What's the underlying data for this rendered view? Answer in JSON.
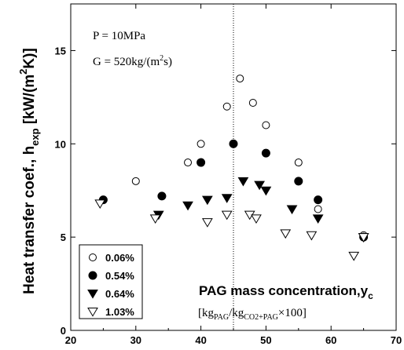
{
  "chart_data": {
    "type": "scatter",
    "xlim": [
      20,
      70
    ],
    "ylim": [
      0,
      17.5
    ],
    "x_ticks": [
      "20",
      "30",
      "40",
      "50",
      "60",
      "70"
    ],
    "y_ticks": [
      "0",
      "5",
      "10",
      "15"
    ],
    "x_tick_values": [
      20,
      30,
      40,
      50,
      60,
      70
    ],
    "y_tick_values": [
      0,
      5,
      10,
      15
    ],
    "grid": false,
    "ylabel": {
      "main": "Heat transfer coef., h",
      "sub": "exp",
      "unit_open": " [kW/(m",
      "unit_sup": "2",
      "unit_close": "K)]"
    },
    "xlabel": {
      "line1": "PAG mass concentration,y",
      "line1_sub": "c",
      "line2_open": "[kg",
      "line2_sub1": "PAG",
      "line2_mid": "/kg",
      "line2_sub2": "CO2+PAG",
      "line2_close": "×100]"
    },
    "annotations": {
      "pressure": "P = 10MPa",
      "mass_flux_open": "G = 520kg/(m",
      "mass_flux_sup": "2",
      "mass_flux_close": "s)"
    },
    "reference_line_x": 45,
    "legend_position": "bottom-left",
    "series": [
      {
        "name": "0.06%",
        "marker": "circle-open",
        "color": "#000000",
        "x": [
          25,
          30,
          38,
          40,
          44,
          46,
          48,
          50,
          55,
          58,
          65
        ],
        "y": [
          7.0,
          8.0,
          9.0,
          10.0,
          12.0,
          13.5,
          12.2,
          11.0,
          9.0,
          6.5,
          5.1
        ]
      },
      {
        "name": "0.54%",
        "marker": "circle-filled",
        "color": "#000000",
        "x": [
          25,
          34,
          40,
          45,
          50,
          55,
          58,
          65
        ],
        "y": [
          7.0,
          7.2,
          9.0,
          10.0,
          9.5,
          8.0,
          7.0,
          5.0
        ]
      },
      {
        "name": "0.64%",
        "marker": "triangle-down-filled",
        "color": "#000000",
        "x": [
          33.5,
          38,
          41,
          44,
          46.5,
          49,
          50,
          54,
          58,
          65
        ],
        "y": [
          6.2,
          6.7,
          7.0,
          7.1,
          8.0,
          7.8,
          7.5,
          6.5,
          6.0,
          5.0
        ]
      },
      {
        "name": "1.03%",
        "marker": "triangle-down-open",
        "color": "#000000",
        "x": [
          24.5,
          33,
          41,
          44,
          47.5,
          48.5,
          53,
          57,
          63.5,
          65
        ],
        "y": [
          6.8,
          6.0,
          5.8,
          6.2,
          6.2,
          6.0,
          5.2,
          5.1,
          4.0,
          5.0
        ]
      }
    ]
  }
}
